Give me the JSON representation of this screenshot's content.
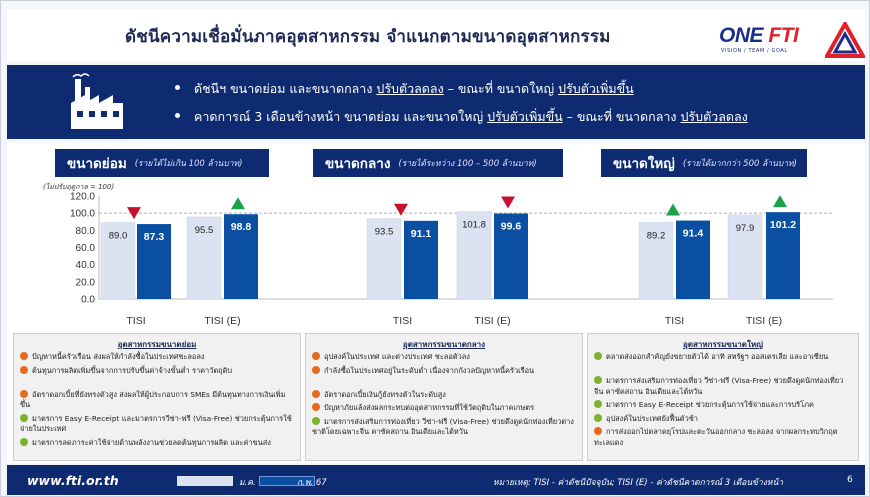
{
  "page": {
    "title": "ดัชนีความเชื่อมั่นภาคอุตสาหกรรม จำแนกตามขนาดอุตสาหกรรม",
    "logo_text_main": "ONE",
    "logo_text_accent": "FTI",
    "logo_tagline": "VISION / TEAM / GOAL"
  },
  "banner": {
    "bullet1_prefix": "ดัชนีฯ ขนาดย่อม และขนาดกลาง ",
    "bullet1_u1": "ปรับตัวลดลง",
    "bullet1_mid": " – ขณะที่ ขนาดใหญ่ ",
    "bullet1_u2": "ปรับตัวเพิ่มขึ้น",
    "bullet2_prefix": "คาดการณ์ 3 เดือนข้างหน้า ขนาดย่อม และขนาดใหญ่ ",
    "bullet2_u1": "ปรับตัวเพิ่มขึ้น",
    "bullet2_mid": " – ขณะที่ ขนาดกลาง ",
    "bullet2_u2": "ปรับตัวลดลง"
  },
  "unit_note": "(ไม่ปรับฤดูกาล = 100)",
  "chart_data": {
    "type": "bar",
    "ylim": [
      0,
      120
    ],
    "yticks": [
      0,
      20,
      40,
      60,
      80,
      100,
      120
    ],
    "ytick_labels": [
      "0.0",
      "20.0",
      "40.0",
      "60.0",
      "80.0",
      "100.0",
      "120.0"
    ],
    "reference_line": 100,
    "categories": [
      "TISI",
      "TISI (E)"
    ],
    "groups": [
      {
        "name": "ขนาดย่อม",
        "note": "(รายได้ไม่เกิน 100 ล้านบาท)",
        "series": [
          {
            "name": "ม.ค. 67",
            "values": [
              89.0,
              95.5
            ]
          },
          {
            "name": "ก.พ. 67",
            "values": [
              87.3,
              98.8
            ]
          }
        ],
        "trend": [
          "down",
          "up"
        ]
      },
      {
        "name": "ขนาดกลาง",
        "note": "(รายได้ระหว่าง 100 – 500 ล้านบาท)",
        "series": [
          {
            "name": "ม.ค. 67",
            "values": [
              93.5,
              101.8
            ]
          },
          {
            "name": "ก.พ. 67",
            "values": [
              91.1,
              99.6
            ]
          }
        ],
        "trend": [
          "down",
          "down"
        ]
      },
      {
        "name": "ขนาดใหญ่",
        "note": "(รายได้มากกว่า 500 ล้านบาท)",
        "series": [
          {
            "name": "ม.ค. 67",
            "values": [
              89.2,
              97.9
            ]
          },
          {
            "name": "ก.พ. 67",
            "values": [
              91.4,
              101.2
            ]
          }
        ],
        "trend": [
          "up",
          "up"
        ]
      }
    ],
    "value_labels": {
      "prev": [
        "89.0",
        "95.5",
        "93.5",
        "101.8",
        "89.2",
        "97.9"
      ],
      "curr": [
        "87.3",
        "98.8",
        "91.1",
        "99.6",
        "91.4",
        "101.2"
      ]
    },
    "colors": {
      "prev": "#dbe3f3",
      "curr": "#0b4fa3",
      "up": "#1ca24a",
      "down": "#c8102e",
      "ref": "#b0b0b0"
    }
  },
  "boxes": [
    {
      "title": "อุตสาหกรรมขนาดย่อม",
      "items": [
        {
          "kind": "neg",
          "text": "ปัญหาหนี้ครัวเรือน ส่งผลให้กำลังซื้อในประเทศชะลอลง"
        },
        {
          "kind": "neg",
          "text": "ต้นทุนการผลิตเพิ่มขึ้นจากการปรับขึ้นค่าจ้างขั้นต่ำ ราคาวัตถุดิบ"
        },
        {
          "kind": "neg",
          "text": "อัตราดอกเบี้ยที่ยังทรงตัวสูง ส่งผลให้ผู้ประกอบการ SMEs มีต้นทุนทางการเงินเพิ่มขึ้น"
        },
        {
          "kind": "pos",
          "text": "มาตรการ Easy E-Receipt และมาตรการวีซ่า-ฟรี (Visa-Free) ช่วยกระตุ้นการใช้จ่ายในประเทศ"
        },
        {
          "kind": "pos",
          "text": "มาตรการลดภาระค่าใช้จ่ายด้านพลังงานช่วยลดต้นทุนการผลิต และค่าขนส่ง"
        }
      ]
    },
    {
      "title": "อุตสาหกรรมขนาดกลาง",
      "items": [
        {
          "kind": "neg",
          "text": "อุปสงค์ในประเทศ และต่างประเทศ ชะลอตัวลง"
        },
        {
          "kind": "neg",
          "text": "กำลังซื้อในประเทศอยู่ในระดับต่ำ เนื่องจากกังวลปัญหาหนี้ครัวเรือน"
        },
        {
          "kind": "neg",
          "text": "อัตราดอกเบี้ยเงินกู้ยังทรงตัวในระดับสูง"
        },
        {
          "kind": "neg",
          "text": "ปัญหาภัยแล้งส่งผลกระทบต่ออุตสาหกรรมที่ใช้วัตถุดิบในภาคเกษตร"
        },
        {
          "kind": "pos",
          "text": "มาตรการส่งเสริมการท่องเที่ยว วีซ่า-ฟรี (Visa-Free) ช่วยดึงดูดนักท่องเที่ยวต่างชาติโดยเฉพาะจีน คาซัคสถาน อินเดียและไต้หวัน"
        }
      ]
    },
    {
      "title": "อุตสาหกรรมขนาดใหญ่",
      "items": [
        {
          "kind": "pos",
          "text": "ตลาดส่งออกสำคัญยังขยายตัวได้ อาทิ สหรัฐฯ ออสเตรเลีย และอาเซียน"
        },
        {
          "kind": "pos",
          "text": "มาตรการส่งเสริมการท่องเที่ยว วีซ่า-ฟรี (Visa-Free) ช่วยดึงดูดนักท่องเที่ยวจีน คาซัคสถาน อินเดียและไต้หวัน"
        },
        {
          "kind": "pos",
          "text": "มาตรการ Easy E-Receipt ช่วยกระตุ้นการใช้จ่ายและการบริโภค"
        },
        {
          "kind": "pos",
          "text": "อุปสงค์ในประเทศยังฟื้นตัวช้า"
        },
        {
          "kind": "neg",
          "text": "การส่งออกไปตลาดยุโรปและตะวันออกกลาง ชะลอลง จากผลกระทบวิกฤตทะเลแดง"
        }
      ]
    }
  ],
  "footer": {
    "url": "www.fti.or.th",
    "legend_prev": "ม.ค. 67",
    "legend_curr": "ก.พ. 67",
    "note": "หมายเหตุ: TISI - ค่าดัชนีปัจจุบัน; TISI (E) - ค่าดัชนีคาดการณ์ 3 เดือนข้างหน้า",
    "page_number": "6"
  }
}
